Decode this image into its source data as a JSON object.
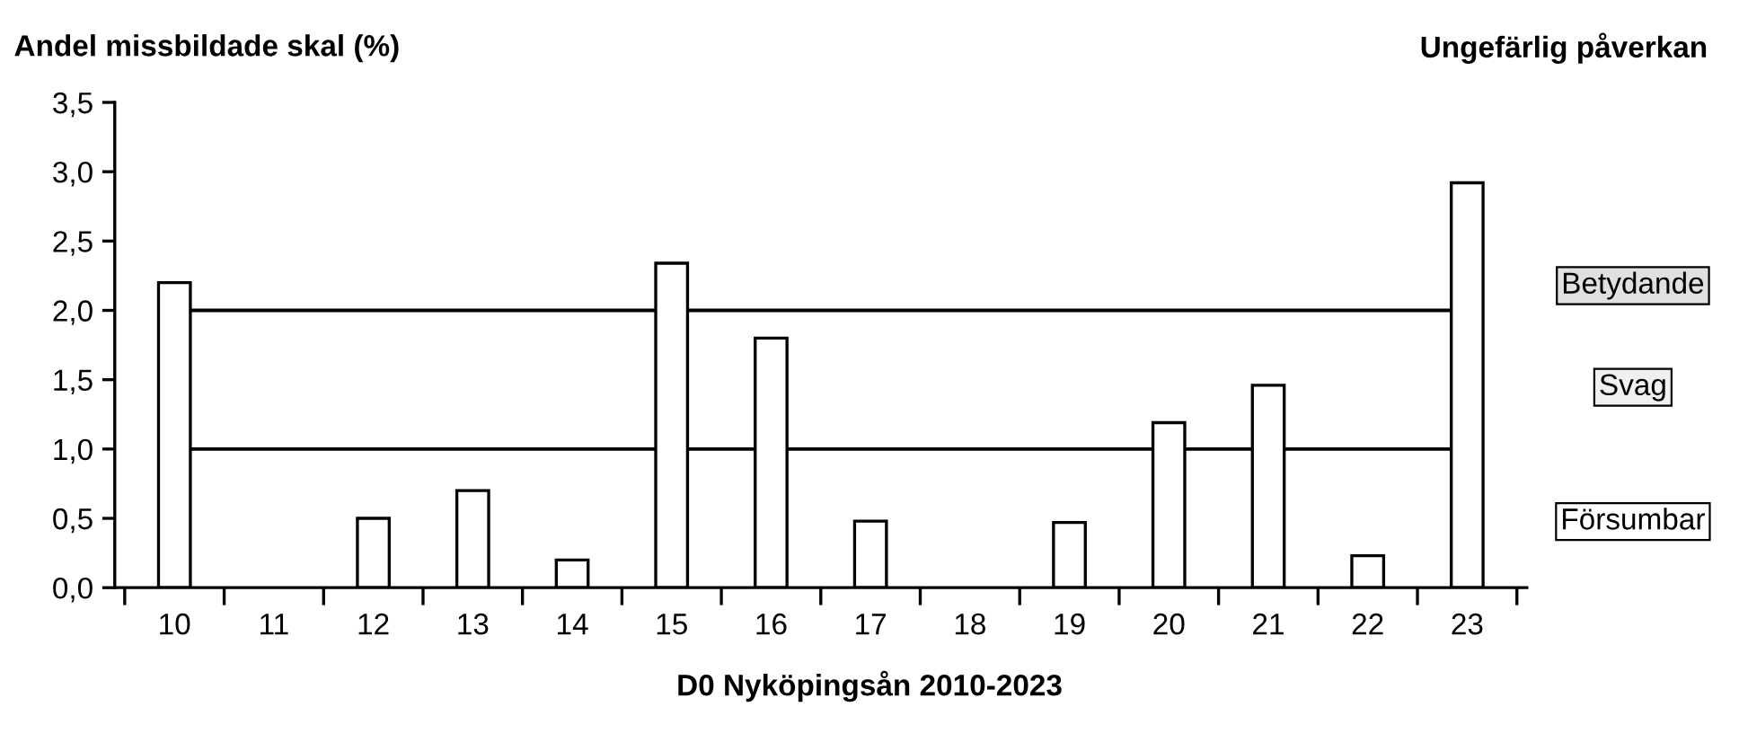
{
  "chart_data": {
    "type": "bar",
    "ylabel": "Andel missbildade skal (%)",
    "xlabel": "D0 Nyköpingsån 2010-2023",
    "categories": [
      "10",
      "11",
      "12",
      "13",
      "14",
      "15",
      "16",
      "17",
      "18",
      "19",
      "20",
      "21",
      "22",
      "23"
    ],
    "values": [
      2.2,
      null,
      0.5,
      0.7,
      0.2,
      2.34,
      1.8,
      0.48,
      null,
      0.47,
      1.19,
      1.46,
      0.23,
      2.92
    ],
    "color": "#ffffff",
    "ylim": [
      0,
      3.5
    ],
    "yticks": [
      {
        "value": 0,
        "label": "0,0"
      },
      {
        "value": 0.5,
        "label": "0,5"
      },
      {
        "value": 1,
        "label": "1,0"
      },
      {
        "value": 1.5,
        "label": "1,5"
      },
      {
        "value": 2,
        "label": "2,0"
      },
      {
        "value": 2.5,
        "label": "2,5"
      },
      {
        "value": 3,
        "label": "3,0"
      },
      {
        "value": 3.5,
        "label": "3,5"
      }
    ],
    "ref_lines": [
      {
        "axis": "y",
        "value": 2,
        "color": "#000000"
      },
      {
        "axis": "y",
        "value": 1,
        "color": "#000000"
      }
    ],
    "annotations": [
      "Ungefärlig påverkan",
      "Betydande",
      "Svag",
      "Försumbar"
    ],
    "grid": false,
    "legend": false
  }
}
